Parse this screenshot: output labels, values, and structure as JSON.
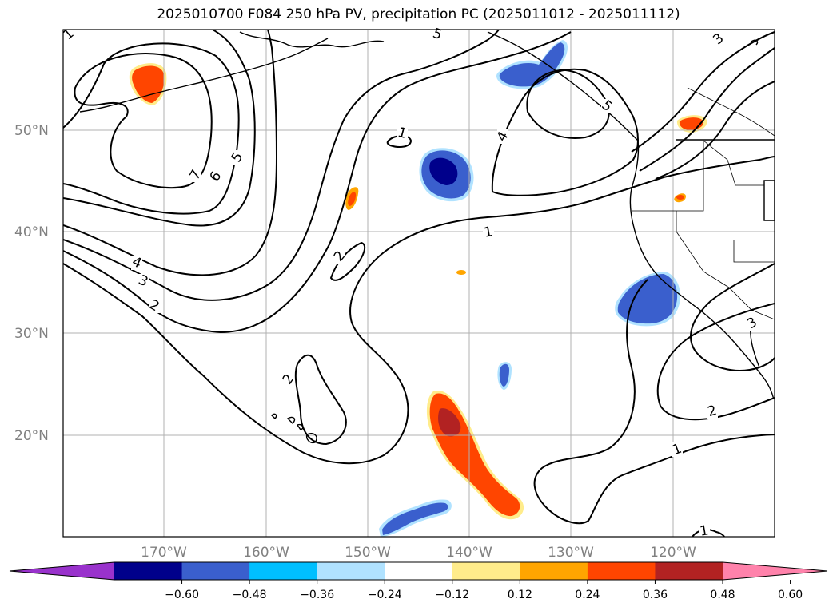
{
  "title": "2025010700 F084 250 hPa PV, precipitation PC (2025011012 - 2025011112)",
  "lat_labels": [
    "50°N",
    "40°N",
    "30°N",
    "20°N"
  ],
  "lon_labels": [
    "170°W",
    "160°W",
    "150°W",
    "140°W",
    "130°W",
    "120°W"
  ],
  "contour_labels": [
    "7",
    "6",
    "5",
    "4",
    "3",
    "2",
    "1",
    "2",
    "2",
    "1",
    "4",
    "5",
    "3",
    "5",
    "3",
    "2",
    "1",
    "1",
    "1"
  ],
  "colorbar": {
    "ticks": [
      "−0.60",
      "−0.48",
      "−0.36",
      "−0.24",
      "−0.12",
      "0.12",
      "0.24",
      "0.36",
      "0.48",
      "0.60"
    ],
    "colors": [
      "#9932cc",
      "#00008b",
      "#3a5fcd",
      "#00bfff",
      "#b0e2ff",
      "#ffffff",
      "#ffec8b",
      "#ffa500",
      "#ff4500",
      "#b22222",
      "#ff82ab"
    ]
  },
  "shading": {
    "positive_colors": [
      "#ffec8b",
      "#ffa500",
      "#ff4500",
      "#b22222"
    ],
    "negative_colors": [
      "#b0e2ff",
      "#00bfff",
      "#3a5fcd",
      "#00008b"
    ]
  }
}
